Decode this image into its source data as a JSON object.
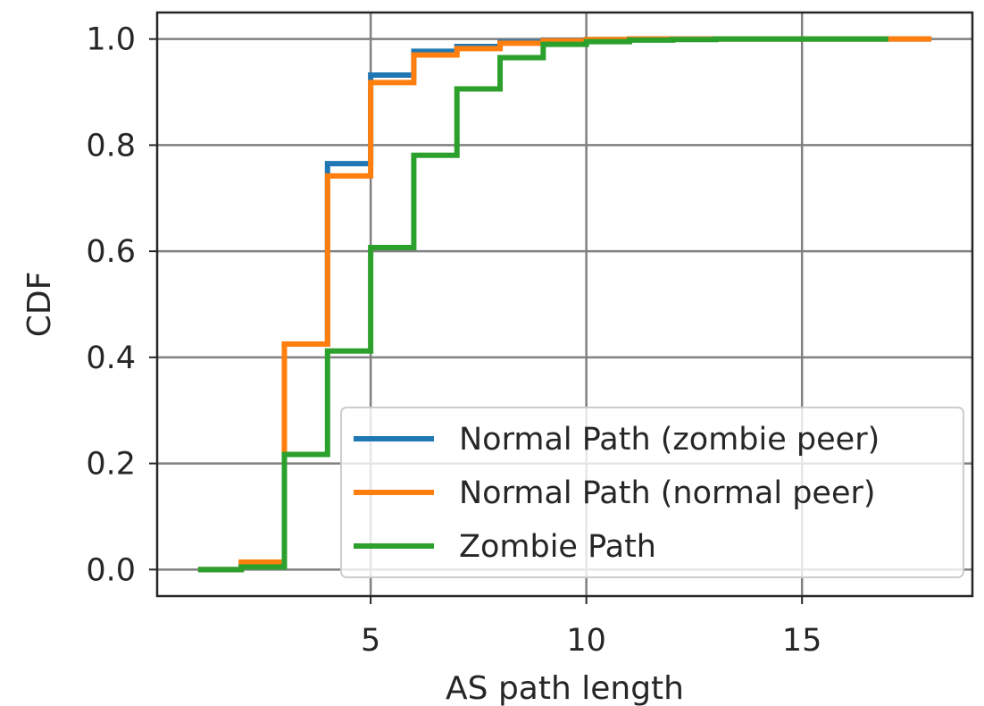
{
  "chart_data": {
    "type": "line",
    "step": true,
    "title": "",
    "xlabel": "AS path length",
    "ylabel": "CDF",
    "xlim": [
      0.05,
      18.95
    ],
    "ylim": [
      -0.05,
      1.05
    ],
    "xticks": [
      5,
      10,
      15
    ],
    "xtick_labels": [
      "5",
      "10",
      "15"
    ],
    "yticks": [
      0.0,
      0.2,
      0.4,
      0.6,
      0.8,
      1.0
    ],
    "ytick_labels": [
      "0.0",
      "0.2",
      "0.4",
      "0.6",
      "0.8",
      "1.0"
    ],
    "grid": true,
    "legend_position": "lower-right",
    "series": [
      {
        "name": "Normal Path (zombie peer)",
        "color": "#1f77b4",
        "x": [
          1,
          2,
          3,
          4,
          5,
          6,
          7,
          8,
          9,
          10,
          11,
          12,
          13,
          14,
          15,
          16,
          17,
          18
        ],
        "y": [
          0.0,
          0.012,
          0.425,
          0.765,
          0.932,
          0.977,
          0.986,
          0.994,
          0.998,
          0.999,
          1.0,
          1.0,
          1.0,
          1.0,
          1.0,
          1.0,
          1.0,
          1.0
        ]
      },
      {
        "name": "Normal Path (normal peer)",
        "color": "#ff7f0e",
        "x": [
          1,
          2,
          3,
          4,
          5,
          6,
          7,
          8,
          9,
          10,
          11,
          12,
          13,
          14,
          15,
          16,
          17,
          18
        ],
        "y": [
          0.0,
          0.014,
          0.425,
          0.742,
          0.918,
          0.97,
          0.982,
          0.992,
          0.997,
          0.999,
          1.0,
          1.0,
          1.0,
          1.0,
          1.0,
          1.0,
          1.0,
          1.0
        ]
      },
      {
        "name": "Zombie Path",
        "color": "#2ca02c",
        "x": [
          1,
          2,
          3,
          4,
          5,
          6,
          7,
          8,
          9,
          10,
          11,
          12,
          13,
          14,
          15,
          16,
          17
        ],
        "y": [
          0.0,
          0.005,
          0.217,
          0.412,
          0.607,
          0.781,
          0.906,
          0.965,
          0.99,
          0.995,
          0.998,
          0.999,
          1.0,
          1.0,
          1.0,
          1.0,
          1.0
        ]
      }
    ]
  }
}
